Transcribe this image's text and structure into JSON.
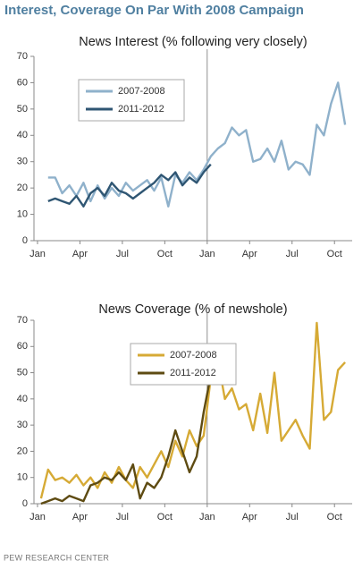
{
  "title": "Interest, Coverage On Par With 2008 Campaign",
  "source": "PEW RESEARCH CENTER",
  "chart_data": [
    {
      "type": "line",
      "title": "News Interest (% following very closely)",
      "xlim": [
        -0.25,
        22.25
      ],
      "xticks": [
        {
          "value": 0,
          "label": "Jan"
        },
        {
          "value": 3,
          "label": "Apr"
        },
        {
          "value": 6,
          "label": "Jul"
        },
        {
          "value": 9,
          "label": "Oct"
        },
        {
          "value": 12,
          "label": "Jan"
        },
        {
          "value": 15,
          "label": "Apr"
        },
        {
          "value": 18,
          "label": "Jul"
        },
        {
          "value": 21,
          "label": "Oct"
        }
      ],
      "ylim": [
        0,
        70
      ],
      "yticks": [
        0,
        10,
        20,
        30,
        40,
        50,
        60,
        70
      ],
      "legend": "upper left",
      "series": [
        {
          "name": "2007-2008",
          "color": "#8fb1cb",
          "x": [
            0.75,
            1.25,
            1.75,
            2.25,
            2.75,
            3.25,
            3.75,
            4.25,
            4.75,
            5.25,
            5.75,
            6.25,
            6.75,
            7.25,
            7.75,
            8.25,
            8.75,
            9.25,
            9.75,
            10.25,
            10.75,
            11.25,
            11.75,
            12.25,
            12.75,
            13.25,
            13.75,
            14.25,
            14.75,
            15.25,
            15.75,
            16.25,
            16.75,
            17.25,
            17.75,
            18.25,
            18.75,
            19.25,
            19.75,
            20.25,
            20.75,
            21.25,
            21.75
          ],
          "values": [
            24,
            24,
            18,
            21,
            17,
            22,
            15,
            21,
            16,
            20,
            17,
            22,
            19,
            21,
            23,
            19,
            24,
            13,
            25,
            22,
            26,
            23,
            27,
            32,
            35,
            37,
            43,
            40,
            42,
            30,
            31,
            35,
            30,
            38,
            27,
            30,
            29,
            25,
            44,
            40,
            52,
            60,
            44
          ]
        },
        {
          "name": "2011-2012",
          "color": "#2f5673",
          "x": [
            0.75,
            1.25,
            1.75,
            2.25,
            2.75,
            3.25,
            3.75,
            4.25,
            4.75,
            5.25,
            5.75,
            6.25,
            6.75,
            7.25,
            7.75,
            8.25,
            8.75,
            9.25,
            9.75,
            10.25,
            10.75,
            11.25,
            11.75,
            12.25
          ],
          "values": [
            15,
            16,
            15,
            14,
            17,
            13,
            18,
            20,
            17,
            22,
            19,
            18,
            16,
            18,
            20,
            22,
            25,
            23,
            26,
            21,
            24,
            22,
            26,
            29
          ]
        }
      ]
    },
    {
      "type": "line",
      "title": "News Coverage (% of newshole)",
      "xlim": [
        -0.25,
        22.25
      ],
      "xticks": [
        {
          "value": 0,
          "label": "Jan"
        },
        {
          "value": 3,
          "label": "Apr"
        },
        {
          "value": 6,
          "label": "Jul"
        },
        {
          "value": 9,
          "label": "Oct"
        },
        {
          "value": 12,
          "label": "Jan"
        },
        {
          "value": 15,
          "label": "Apr"
        },
        {
          "value": 18,
          "label": "Jul"
        },
        {
          "value": 21,
          "label": "Oct"
        }
      ],
      "ylim": [
        0,
        70
      ],
      "yticks": [
        0,
        10,
        20,
        30,
        40,
        50,
        60,
        70
      ],
      "legend": "upper center",
      "series": [
        {
          "name": "2007-2008",
          "color": "#d6aa35",
          "x": [
            0.25,
            0.75,
            1.25,
            1.75,
            2.25,
            2.75,
            3.25,
            3.75,
            4.25,
            4.75,
            5.25,
            5.75,
            6.25,
            6.75,
            7.25,
            7.75,
            8.25,
            8.75,
            9.25,
            9.75,
            10.25,
            10.75,
            11.25,
            11.75,
            12.25,
            12.75,
            13.25,
            13.75,
            14.25,
            14.75,
            15.25,
            15.75,
            16.25,
            16.75,
            17.25,
            17.75,
            18.25,
            18.75,
            19.25,
            19.75,
            20.25,
            20.75,
            21.25,
            21.75
          ],
          "values": [
            2,
            13,
            9,
            10,
            8,
            11,
            7,
            10,
            6,
            12,
            8,
            14,
            9,
            6,
            14,
            10,
            15,
            20,
            14,
            24,
            18,
            28,
            22,
            26,
            48,
            55,
            40,
            44,
            36,
            38,
            28,
            42,
            27,
            50,
            24,
            28,
            32,
            26,
            21,
            69,
            32,
            35,
            51,
            54
          ]
        },
        {
          "name": "2011-2012",
          "color": "#5e4b12",
          "x": [
            0.25,
            0.75,
            1.25,
            1.75,
            2.25,
            2.75,
            3.25,
            3.75,
            4.25,
            4.75,
            5.25,
            5.75,
            6.25,
            6.75,
            7.25,
            7.75,
            8.25,
            8.75,
            9.25,
            9.75,
            10.25,
            10.75,
            11.25,
            11.75,
            12.25
          ],
          "values": [
            0,
            1,
            2,
            1,
            3,
            2,
            1,
            7,
            8,
            10,
            9,
            12,
            9,
            15,
            2,
            8,
            6,
            10,
            18,
            28,
            20,
            12,
            18,
            35,
            49
          ]
        }
      ]
    }
  ]
}
